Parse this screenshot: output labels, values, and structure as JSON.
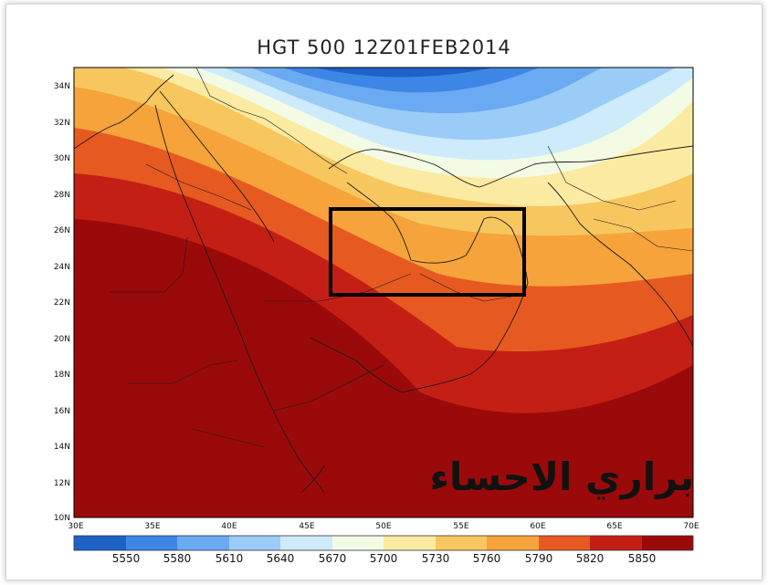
{
  "title": "HGT 500 12Z01FEB2014",
  "brand_text": "براري الاحساء",
  "map": {
    "lon_ticks": [
      "30E",
      "35E",
      "40E",
      "45E",
      "50E",
      "55E",
      "60E",
      "65E",
      "70E"
    ],
    "lat_ticks": [
      "10N",
      "12N",
      "14N",
      "16N",
      "18N",
      "20N",
      "22N",
      "24N",
      "26N",
      "28N",
      "30N",
      "32N",
      "34N"
    ],
    "highlight_box": "region of interest rectangle"
  },
  "colorbar": {
    "labels": [
      "5550",
      "5580",
      "5610",
      "5640",
      "5670",
      "5700",
      "5730",
      "5760",
      "5790",
      "5820",
      "5850"
    ],
    "colors": [
      "#1e62c8",
      "#3d86e6",
      "#6aaaf2",
      "#9bcbf7",
      "#cdebfb",
      "#f3fbe4",
      "#fbeaa1",
      "#f8c65f",
      "#f5a33a",
      "#e65a22",
      "#c41f15",
      "#9b0a0a"
    ]
  }
}
